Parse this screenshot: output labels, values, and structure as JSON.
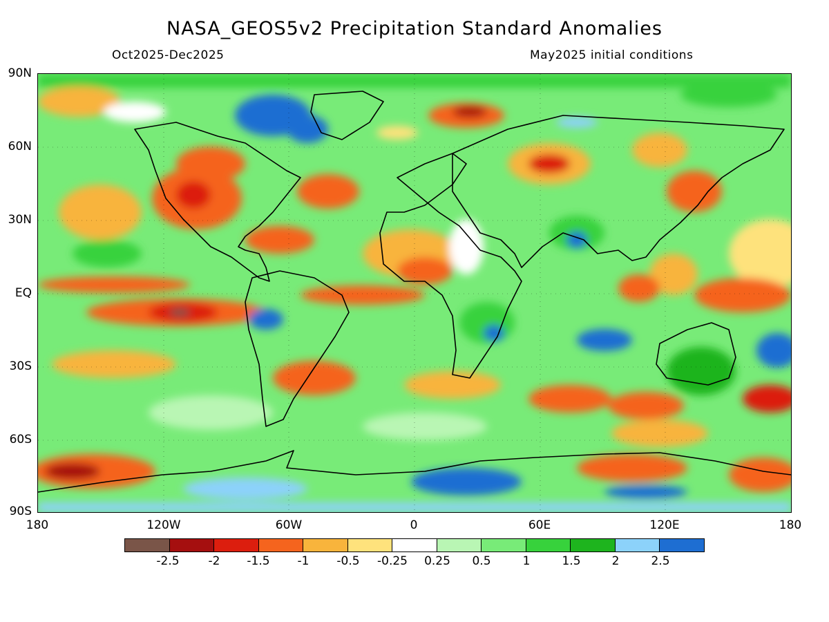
{
  "header": {
    "title": "NASA_GEOS5v2 Precipitation Standard Anomalies",
    "period": "Oct2025-Dec2025",
    "init": "May2025 initial conditions"
  },
  "axes": {
    "y_labels": [
      "90N",
      "60N",
      "30N",
      "EQ",
      "30S",
      "60S",
      "90S"
    ],
    "x_labels": [
      "180",
      "120W",
      "60W",
      "0",
      "60E",
      "120E",
      "180"
    ]
  },
  "colorbar": {
    "colors": [
      "#7a5548",
      "#a50f0f",
      "#dc1e0e",
      "#f5641e",
      "#f8b43c",
      "#fee27c",
      "#ffffff",
      "#b9f6b4",
      "#78eb78",
      "#37d23c",
      "#1eb41e",
      "#8cd2fa",
      "#1e6ed2"
    ],
    "labels": [
      "-2.5",
      "-2",
      "-1.5",
      "-1",
      "-0.5",
      "-0.25",
      "0.25",
      "0.5",
      "1",
      "1.5",
      "2",
      "2.5"
    ]
  },
  "map": {
    "projection": "equirectangular",
    "lon_range": [
      -180,
      180
    ],
    "lat_range": [
      -90,
      90
    ],
    "grid": "dotted"
  }
}
